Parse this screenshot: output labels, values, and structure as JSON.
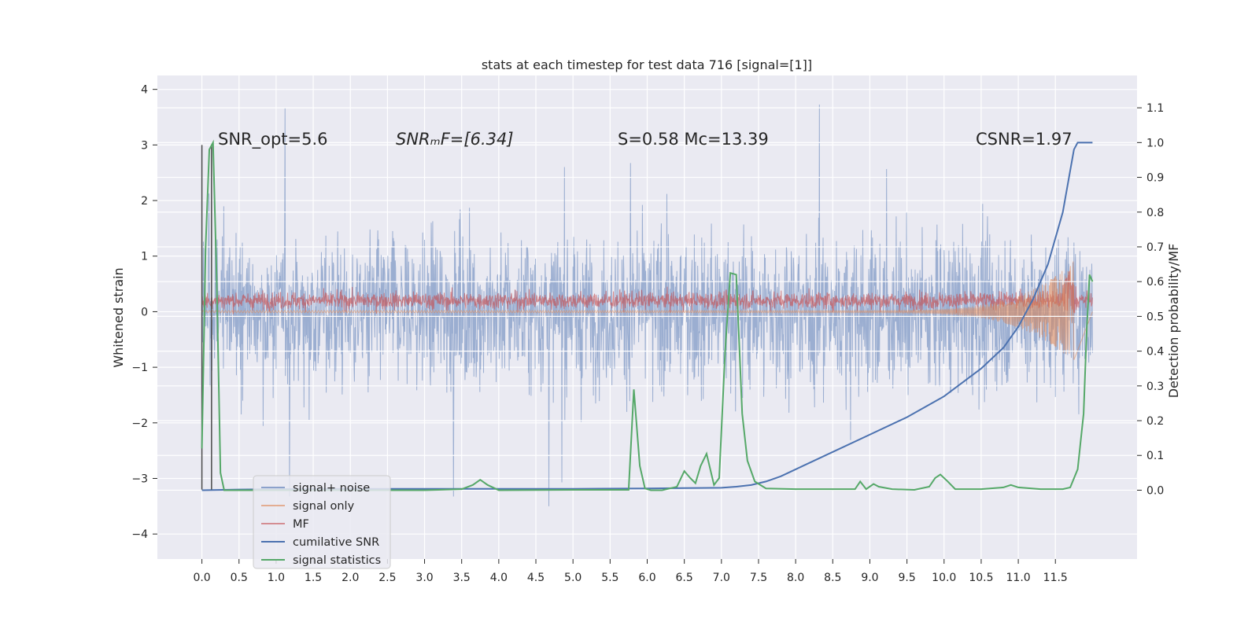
{
  "chart_data": {
    "type": "line",
    "title": "stats at each timestep for test data 716 [signal=[1]]",
    "ylabel": "Whitened strain",
    "y2label": "Detection probability/MF",
    "xlim": [
      -0.6,
      12.6
    ],
    "ylim": [
      -4.45,
      4.25
    ],
    "y2lim": [
      -0.198,
      1.193
    ],
    "x_ticks": [
      0.0,
      0.5,
      1.0,
      1.5,
      2.0,
      2.5,
      3.0,
      3.5,
      4.0,
      4.5,
      5.0,
      5.5,
      6.0,
      6.5,
      7.0,
      7.5,
      8.0,
      8.5,
      9.0,
      9.5,
      10.0,
      10.5,
      11.0,
      11.5
    ],
    "x_tick_labels": [
      "0.0",
      "0.5",
      "1.0",
      "1.5",
      "2.0",
      "2.5",
      "3.0",
      "3.5",
      "4.0",
      "4.5",
      "5.0",
      "5.5",
      "6.0",
      "6.5",
      "7.0",
      "7.5",
      "8.0",
      "8.5",
      "9.0",
      "9.5",
      "10.0",
      "10.5",
      "11.0",
      "11.5"
    ],
    "y_ticks": [
      4,
      3,
      2,
      1,
      0,
      -1,
      -2,
      -3,
      -4
    ],
    "y_tick_labels": [
      "4",
      "3",
      "2",
      "1",
      "0",
      "−1",
      "−2",
      "−3",
      "−4"
    ],
    "y2_ticks": [
      1.1,
      1.0,
      0.9,
      0.8,
      0.7,
      0.6,
      0.5,
      0.4,
      0.3,
      0.2,
      0.1,
      0.0
    ],
    "y2_tick_labels": [
      "1.1",
      "1.0",
      "0.9",
      "0.8",
      "0.7",
      "0.6",
      "0.5",
      "0.4",
      "0.3",
      "0.2",
      "0.1",
      "0.0"
    ],
    "grid": true,
    "legend_position": "lower-left",
    "annotations": [
      {
        "text": "SNR_opt=5.6"
      },
      {
        "text": "SNRₘF=[6.34]"
      },
      {
        "text": "S=0.58   Mc=13.39"
      },
      {
        "text": "CSNR=1.97"
      }
    ],
    "series": [
      {
        "name": "signal+ noise",
        "axis": "left",
        "color": "#4c72b0",
        "description_range": [
          -3.5,
          3.85
        ],
        "x_range": [
          0.0,
          12.0
        ]
      },
      {
        "name": "signal only",
        "axis": "left",
        "color": "#dd8452",
        "x_range": [
          0.0,
          12.0
        ]
      },
      {
        "name": "MF",
        "axis": "left",
        "color": "#c44e52",
        "x_range": [
          0.0,
          12.0
        ]
      },
      {
        "name": "cumilative SNR",
        "axis": "right",
        "x": [
          0.0,
          0.5,
          1.0,
          2.0,
          3.0,
          4.0,
          5.0,
          6.0,
          6.5,
          7.0,
          7.2,
          7.4,
          7.6,
          7.8,
          8.0,
          8.5,
          9.0,
          9.5,
          10.0,
          10.5,
          10.8,
          11.0,
          11.2,
          11.4,
          11.6,
          11.7,
          11.75,
          11.8,
          12.0
        ],
        "y": [
          0.0,
          0.002,
          0.003,
          0.004,
          0.004,
          0.004,
          0.004,
          0.005,
          0.006,
          0.007,
          0.01,
          0.015,
          0.025,
          0.04,
          0.06,
          0.11,
          0.16,
          0.21,
          0.27,
          0.35,
          0.41,
          0.47,
          0.55,
          0.65,
          0.8,
          0.92,
          0.98,
          1.0,
          1.0
        ]
      },
      {
        "name": "signal statistics",
        "axis": "right",
        "x": [
          0.0,
          0.05,
          0.1,
          0.15,
          0.2,
          0.25,
          0.3,
          0.4,
          1.0,
          2.0,
          3.0,
          3.5,
          3.65,
          3.75,
          3.85,
          4.0,
          5.0,
          5.5,
          5.75,
          5.82,
          5.9,
          5.97,
          6.05,
          6.2,
          6.4,
          6.5,
          6.58,
          6.65,
          6.72,
          6.8,
          6.9,
          6.97,
          7.05,
          7.12,
          7.2,
          7.28,
          7.35,
          7.45,
          7.6,
          8.0,
          8.8,
          8.87,
          8.95,
          9.05,
          9.12,
          9.3,
          9.6,
          9.8,
          9.88,
          9.95,
          10.05,
          10.15,
          10.5,
          10.8,
          10.9,
          11.0,
          11.3,
          11.6,
          11.7,
          11.8,
          11.88,
          11.92,
          11.96,
          12.0
        ],
        "y": [
          0.12,
          0.7,
          0.98,
          1.0,
          0.6,
          0.05,
          0.0,
          0.0,
          0.0,
          0.0,
          0.0,
          0.003,
          0.015,
          0.03,
          0.015,
          0.0,
          0.001,
          0.001,
          0.001,
          0.29,
          0.07,
          0.005,
          0.0,
          0.0,
          0.01,
          0.055,
          0.035,
          0.02,
          0.07,
          0.105,
          0.015,
          0.035,
          0.4,
          0.625,
          0.62,
          0.22,
          0.085,
          0.025,
          0.005,
          0.003,
          0.003,
          0.025,
          0.003,
          0.018,
          0.01,
          0.003,
          0.001,
          0.01,
          0.035,
          0.045,
          0.025,
          0.003,
          0.003,
          0.008,
          0.015,
          0.008,
          0.003,
          0.003,
          0.008,
          0.06,
          0.22,
          0.45,
          0.62,
          0.6
        ]
      }
    ],
    "legend": [
      {
        "label": "signal+ noise",
        "color": "#4c72b0"
      },
      {
        "label": "signal only",
        "color": "#dd8452"
      },
      {
        "label": "MF",
        "color": "#c44e52"
      },
      {
        "label": "cumilative SNR",
        "color": "#4c72b0"
      },
      {
        "label": "signal statistics",
        "color": "#55a868"
      }
    ]
  }
}
